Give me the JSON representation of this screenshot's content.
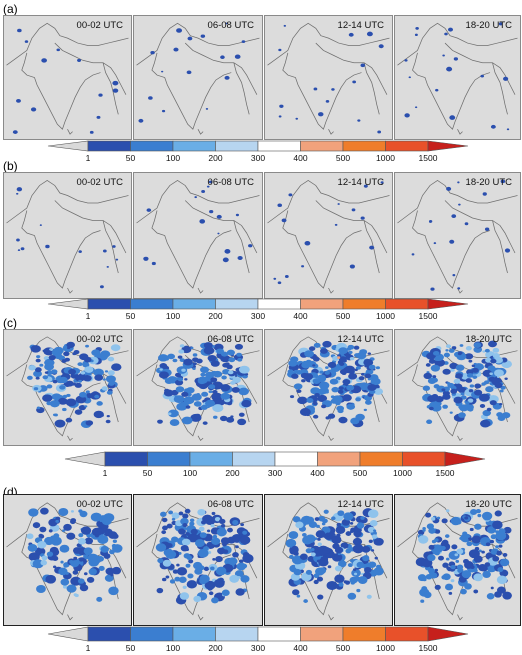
{
  "rows": [
    {
      "label": "(a)",
      "panels": [
        {
          "time": "00-02 UTC",
          "density": 0.08,
          "seed": 11
        },
        {
          "time": "06-08 UTC",
          "density": 0.14,
          "seed": 23
        },
        {
          "time": "12-14 UTC",
          "density": 0.14,
          "seed": 37
        },
        {
          "time": "18-20 UTC",
          "density": 0.16,
          "seed": 41
        }
      ]
    },
    {
      "label": "(b)",
      "panels": [
        {
          "time": "00-02 UTC",
          "density": 0.08,
          "seed": 53
        },
        {
          "time": "06-08 UTC",
          "density": 0.14,
          "seed": 67
        },
        {
          "time": "12-14 UTC",
          "density": 0.14,
          "seed": 71
        },
        {
          "time": "18-20 UTC",
          "density": 0.15,
          "seed": 83
        }
      ]
    },
    {
      "label": "(c)",
      "panels": [
        {
          "time": "00-02 UTC",
          "density": 0.75,
          "seed": 97
        },
        {
          "time": "06-08 UTC",
          "density": 0.9,
          "seed": 101
        },
        {
          "time": "12-14 UTC",
          "density": 0.95,
          "seed": 113
        },
        {
          "time": "18-20 UTC",
          "density": 0.85,
          "seed": 127
        }
      ]
    },
    {
      "label": "(d)",
      "panels": [
        {
          "time": "00-02 UTC",
          "density": 0.7,
          "seed": 131
        },
        {
          "time": "06-08 UTC",
          "density": 0.9,
          "seed": 139
        },
        {
          "time": "12-14 UTC",
          "density": 0.95,
          "seed": 149
        },
        {
          "time": "18-20 UTC",
          "density": 0.92,
          "seed": 157
        }
      ]
    }
  ],
  "colorbar": {
    "ticks": [
      "1",
      "50",
      "100",
      "200",
      "300",
      "400",
      "500",
      "1000",
      "1500"
    ],
    "colors": [
      "#d9d9d9",
      "#2b4fae",
      "#3b7ed0",
      "#6aaee6",
      "#b7d5f0",
      "#ffffff",
      "#f1a27c",
      "#ef7d2b",
      "#e8512a",
      "#c6201c"
    ]
  },
  "colors": {
    "land": "#dcdcdc",
    "rain_low": "#2b4fae",
    "rain_mid": "#3b7ed0",
    "rain_high": "#8fc3ec",
    "rain_peak": "#f1a27c"
  }
}
